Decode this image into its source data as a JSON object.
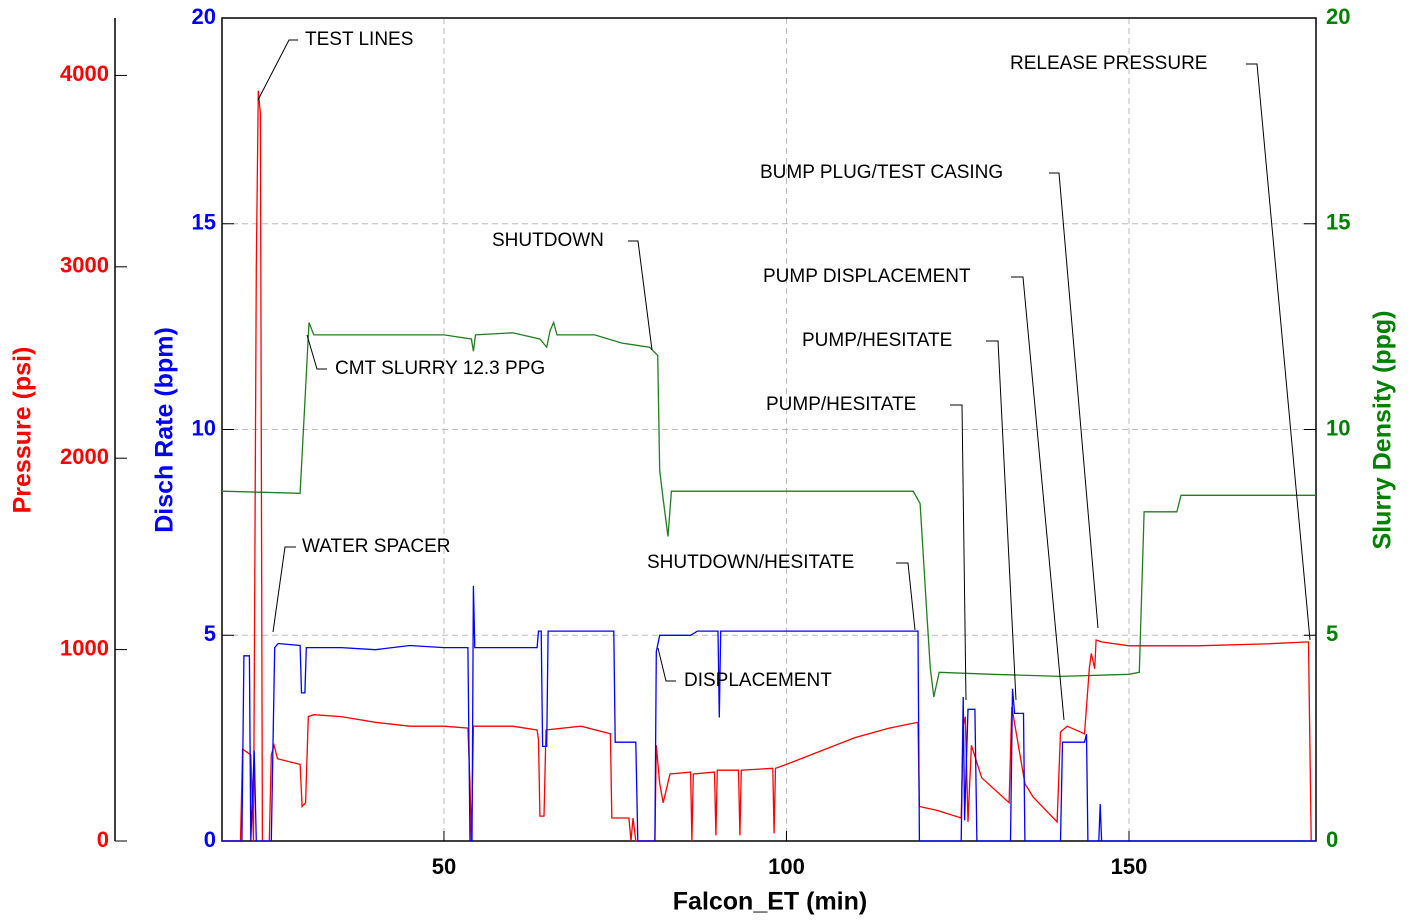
{
  "chart_data": {
    "type": "line",
    "x_label": "Falcon_ET (min)",
    "y_label": "Pressure (psi)",
    "y2_label": "Disch Rate (bpm)",
    "y3_label": "Slurry Density (ppg)",
    "y_color": "#ff0000",
    "y2_color": "#0000ff",
    "y3_color": "#008000",
    "xlim": [
      17.6,
      177.3
    ],
    "xticks": [
      50,
      100,
      150
    ],
    "ylim": [
      0,
      4300
    ],
    "yticks": [
      0,
      1000,
      2000,
      3000,
      4000
    ],
    "y2lim": [
      0,
      20
    ],
    "y2ticks": [
      0,
      5,
      10,
      15,
      20
    ],
    "y3lim": [
      0,
      20
    ],
    "y3ticks": [
      0,
      5,
      10,
      15,
      20
    ],
    "grid": true,
    "series": [
      {
        "name": "Slurry Density",
        "color": "#1f7f1f",
        "axis": "y3",
        "x": [
          17.6,
          29.0,
          29.8,
          30.3,
          31,
          40,
          50,
          54,
          54.3,
          54.6,
          60,
          64,
          65,
          65.5,
          66,
          66.5,
          72,
          76,
          80,
          81.2,
          81.5,
          82,
          82.7,
          83.2,
          90,
          100,
          115,
          118.5,
          119.5,
          120.5,
          121,
          121.5,
          122.3,
          130,
          140,
          150,
          151.5,
          152.2,
          157,
          157.6,
          170,
          177.3
        ],
        "values": [
          8.5,
          8.45,
          11.0,
          12.6,
          12.3,
          12.3,
          12.3,
          12.2,
          11.9,
          12.3,
          12.35,
          12.2,
          12.0,
          12.4,
          12.6,
          12.3,
          12.3,
          12.1,
          12.0,
          11.8,
          9,
          8.3,
          7.4,
          8.5,
          8.5,
          8.5,
          8.5,
          8.5,
          8.2,
          5.5,
          4.2,
          3.5,
          4.1,
          4.05,
          4.0,
          4.05,
          4.1,
          8.0,
          8.0,
          8.4,
          8.4,
          8.4
        ]
      },
      {
        "name": "Pressure",
        "color": "#ff0000",
        "axis": "y",
        "x": [
          17.6,
          20.3,
          20.6,
          21.8,
          22.2,
          22.6,
          22.9,
          23.2,
          23.5,
          24.5,
          24.8,
          25.2,
          25.7,
          29,
          29.3,
          29.8,
          30.2,
          31,
          35,
          40,
          45,
          50,
          53.5,
          53.8,
          54,
          54.3,
          60,
          63.6,
          63.8,
          64,
          64.6,
          64.9,
          70,
          74.3,
          74.5,
          77,
          77.3,
          77.6,
          78,
          80.8,
          81,
          81.5,
          82,
          83,
          86,
          86.2,
          86.4,
          89.5,
          89.7,
          89.9,
          93,
          93.2,
          93.4,
          98,
          98.2,
          98.4,
          100,
          105,
          110,
          115,
          119.2,
          119.4,
          122,
          125.5,
          125.8,
          126.1,
          126.5,
          127,
          128.5,
          132.5,
          132.9,
          134.8,
          136,
          139.5,
          140,
          141,
          143.5,
          144,
          144.2,
          144.5,
          145,
          145.2,
          146,
          150,
          160,
          170,
          176.2,
          176.6
        ],
        "values": [
          0,
          0,
          480,
          450,
          0,
          3000,
          3920,
          3800,
          0,
          0,
          450,
          500,
          430,
          400,
          180,
          200,
          650,
          660,
          650,
          620,
          600,
          600,
          590,
          300,
          0,
          600,
          600,
          580,
          530,
          130,
          130,
          580,
          600,
          560,
          120,
          120,
          0,
          120,
          0,
          0,
          500,
          300,
          200,
          350,
          360,
          0,
          350,
          360,
          30,
          370,
          370,
          30,
          370,
          380,
          40,
          380,
          400,
          470,
          540,
          590,
          620,
          180,
          160,
          120,
          600,
          650,
          100,
          500,
          330,
          200,
          700,
          300,
          230,
          100,
          570,
          600,
          560,
          800,
          900,
          980,
          900,
          1050,
          1040,
          1020,
          1020,
          1030,
          1040,
          0
        ]
      },
      {
        "name": "Disch Rate",
        "color": "#0000ff",
        "axis": "y2",
        "x": [
          17.6,
          20.5,
          20.8,
          21.6,
          21.8,
          22.3,
          22.6,
          24.8,
          25.3,
          25.8,
          29,
          29.2,
          29.7,
          29.9,
          35,
          40,
          45,
          50,
          53.5,
          53.8,
          54.1,
          54.3,
          54.5,
          60,
          63.6,
          63.8,
          64.2,
          64.4,
          65,
          65.2,
          70,
          74.8,
          75,
          78,
          78.3,
          80.8,
          81,
          81.5,
          86,
          87,
          90,
          90.2,
          90.4,
          100,
          119.2,
          119.4,
          125.5,
          125.8,
          126,
          126.5,
          127.5,
          127.8,
          132.7,
          133,
          133.3,
          134.6,
          134.8,
          140,
          140.3,
          143.5,
          143.8,
          144,
          145.6,
          145.8,
          146,
          177.3
        ],
        "values": [
          0,
          0,
          4.5,
          4.5,
          0,
          2.2,
          0,
          0,
          4.7,
          4.8,
          4.75,
          3.6,
          3.6,
          4.7,
          4.7,
          4.65,
          4.75,
          4.7,
          4.7,
          0,
          0,
          6.2,
          4.7,
          4.7,
          4.7,
          5.1,
          5.1,
          2.3,
          2.3,
          5.1,
          5.1,
          5.1,
          2.4,
          2.4,
          0,
          0,
          4.6,
          5.0,
          5.0,
          5.1,
          5.1,
          3,
          5.1,
          5.1,
          5.1,
          0,
          0,
          3.5,
          0.5,
          3.2,
          3.2,
          0,
          0,
          3.7,
          3.1,
          3.1,
          0,
          0,
          2.4,
          2.4,
          2.6,
          0,
          0,
          0.9,
          0,
          0
        ]
      }
    ],
    "annotations": [
      {
        "text": "TEST LINES"
      },
      {
        "text": "CMT SLURRY 12.3 PPG"
      },
      {
        "text": "WATER SPACER"
      },
      {
        "text": "SHUTDOWN"
      },
      {
        "text": "SHUTDOWN/HESITATE"
      },
      {
        "text": "DISPLACEMENT"
      },
      {
        "text": "PUMP/HESITATE"
      },
      {
        "text": "PUMP/HESITATE"
      },
      {
        "text": "PUMP DISPLACEMENT"
      },
      {
        "text": "BUMP PLUG/TEST CASING"
      },
      {
        "text": "RELEASE PRESSURE"
      }
    ]
  }
}
